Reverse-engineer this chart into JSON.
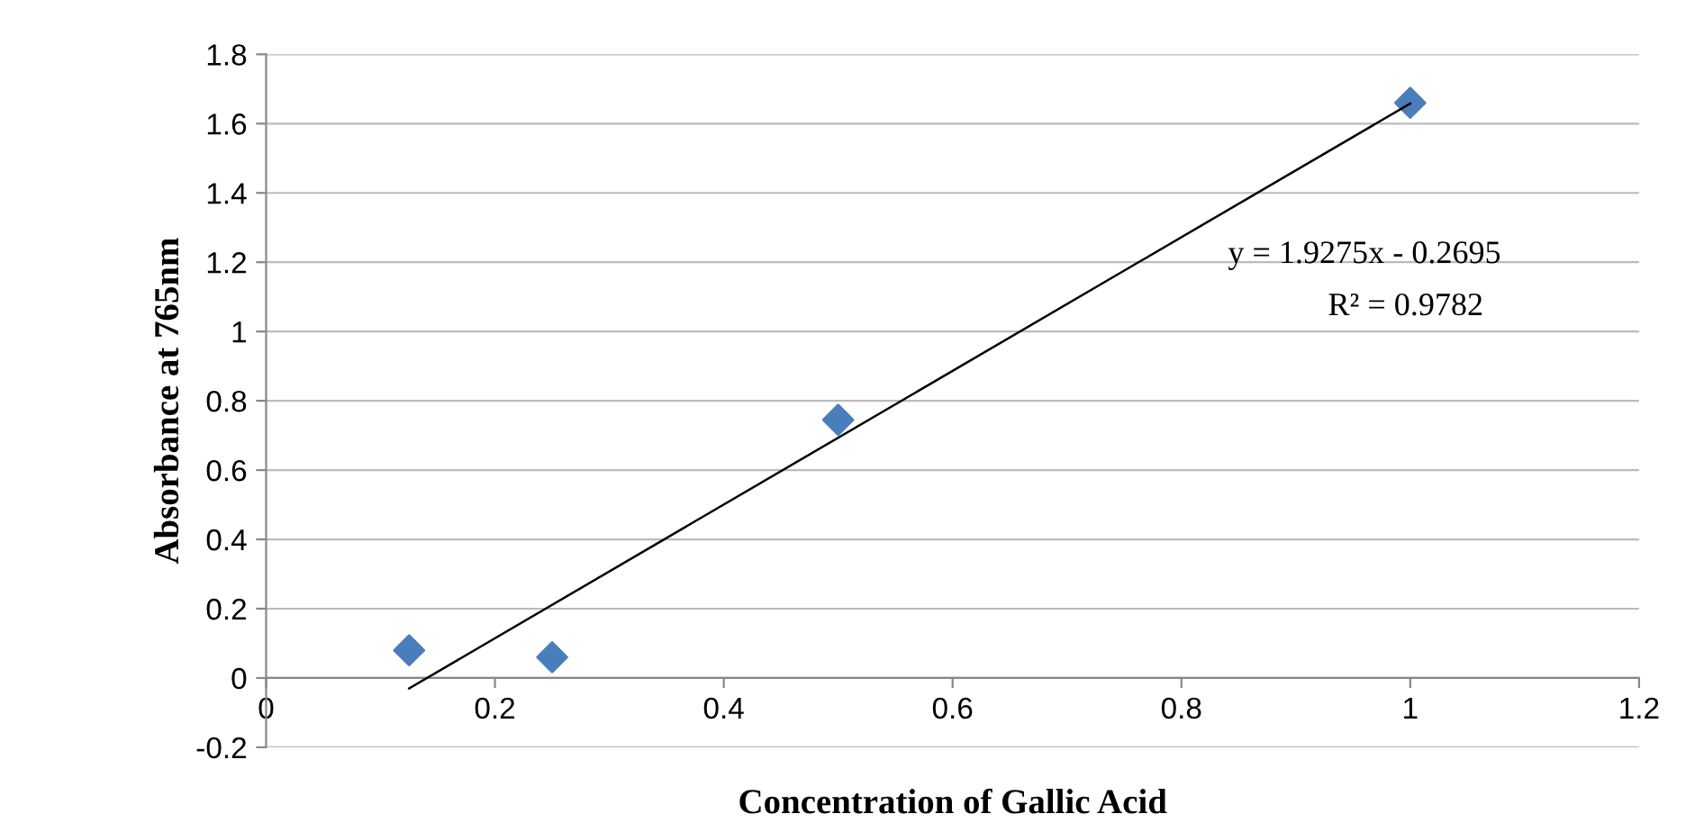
{
  "chart_data": {
    "type": "scatter",
    "xlabel": "Concentration of Gallic Acid",
    "ylabel": "Absorbance at 765nm",
    "series": [
      {
        "color": "#4a7ebb",
        "marker": "diamond",
        "x": [
          0.125,
          0.25,
          0.5,
          1.0
        ],
        "values": [
          0.08,
          0.06,
          0.745,
          1.66
        ]
      },
      {
        "type": "line",
        "color": "#000000",
        "marker": "none",
        "line_style": "solid",
        "x": [
          0.125,
          1.0
        ],
        "values": [
          -0.03,
          1.658
        ]
      }
    ],
    "xlim": [
      0,
      1.2
    ],
    "xticks": [
      0,
      0.2,
      0.4,
      0.6,
      0.8,
      1,
      1.2
    ],
    "ylim": [
      -0.2,
      1.8
    ],
    "yticks": [
      -0.2,
      0,
      0.2,
      0.4,
      0.6,
      0.8,
      1,
      1.2,
      1.4,
      1.6,
      1.8
    ],
    "grid": "y",
    "legend": false,
    "annotations": [
      "y = 1.9275x - 0.2695",
      "R² = 0.9782"
    ]
  }
}
